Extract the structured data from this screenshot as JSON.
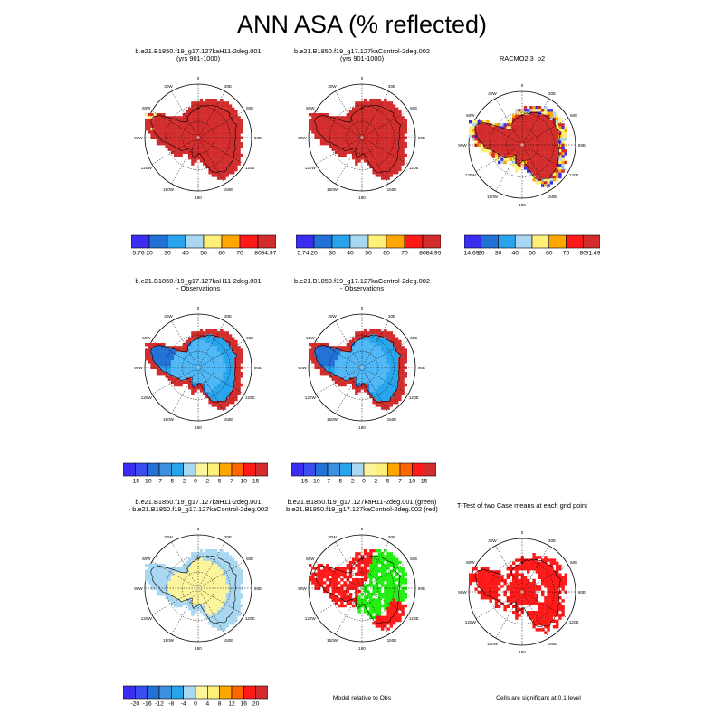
{
  "title": "ANN ASA (% reflected)",
  "colors": {
    "dark_red": "#d22c2c",
    "red": "#ff1a1a",
    "orange": "#ffa600",
    "yellow": "#fff07a",
    "pale_yellow": "#fdf59c",
    "light_blue": "#a9d6f0",
    "sky_blue": "#4fb7f5",
    "mid_blue": "#27a4ec",
    "blue": "#2171d6",
    "violet": "#3b2ef0",
    "green": "#22ee11",
    "coast": "#000000"
  },
  "icons": {
    "south_pole_marker": "cross-marker"
  },
  "panels": [
    {
      "id": "p1",
      "title": [
        "b.e21.B1850.f19_g17.127kaH11-2deg.001",
        "(yrs 901-1000)"
      ],
      "shelf": "dark_red",
      "interior": "dark_red",
      "margin": "dark_red",
      "peninsula": "edge_yellow"
    },
    {
      "id": "p2",
      "title": [
        "b.e21.B1850.f19_g17.127kaControl-2deg.002",
        "(yrs 901-1000)"
      ],
      "shelf": "dark_red",
      "interior": "dark_red",
      "margin": "dark_red",
      "peninsula": "dark_red"
    },
    {
      "id": "p3",
      "title": [
        "RACMO2.3_p2"
      ],
      "shelf": "dark_red",
      "interior": "dark_red",
      "margin": "ringed",
      "peninsula": "mixed"
    },
    {
      "id": "p4",
      "title": [
        "b.e21.B1850.f19_g17.127kaH11-2deg.001",
        "- Observations"
      ],
      "shelf": "dark_red",
      "interior": "sky_blue",
      "margin": "mid_blue",
      "peninsula": "blue"
    },
    {
      "id": "p5",
      "title": [
        "b.e21.B1850.f19_g17.127kaControl-2deg.002",
        "- Observations"
      ],
      "shelf": "dark_red",
      "interior": "sky_blue",
      "margin": "mid_blue",
      "peninsula": "blue"
    },
    {
      "id": "p7",
      "title": [
        "b.e21.B1850.f19_g17.127kaH11-2deg.001",
        "- b.e21.B1850.f19_g17.127kaControl-2deg.002"
      ],
      "shelf": "light_blue",
      "interior": "pale_yellow",
      "margin": "light_blue",
      "peninsula": "light_blue"
    },
    {
      "id": "p8",
      "title": [
        "b.e21.B1850.f19_g17.127kaH11-2deg.001 (green)",
        "b.e21.B1850.f19_g17.127kaControl-2deg.002 (red)"
      ],
      "shelf": "red_green",
      "interior": "green_red",
      "margin": "red_green",
      "peninsula": "red"
    },
    {
      "id": "p9",
      "title": [
        "T-Test of two Case means at each grid point"
      ],
      "shelf": "red_holes",
      "interior": "red_holes",
      "margin": "red_holes",
      "peninsula": "red"
    }
  ],
  "map_labels": {
    "0": "0",
    "30E": "30E",
    "60E": "60E",
    "90E": "90E",
    "120E": "120E",
    "150E": "150E",
    "180": "180",
    "150W": "150W",
    "120W": "120W",
    "90W": "90W",
    "60W": "60W",
    "30W": "30W"
  },
  "colorbars": [
    {
      "id": "cb1",
      "labels": [
        "5.76",
        "20",
        "30",
        "40",
        "50",
        "60",
        "70",
        "80",
        "84.97"
      ],
      "swatches": [
        "violet",
        "blue",
        "mid_blue",
        "light_blue",
        "yellow",
        "orange",
        "red",
        "dark_red"
      ]
    },
    {
      "id": "cb2",
      "labels": [
        "5.74",
        "20",
        "30",
        "40",
        "50",
        "60",
        "70",
        "80",
        "84.95"
      ],
      "swatches": [
        "violet",
        "blue",
        "mid_blue",
        "light_blue",
        "yellow",
        "orange",
        "red",
        "dark_red"
      ]
    },
    {
      "id": "cb3",
      "labels": [
        "14.69",
        "20",
        "30",
        "40",
        "50",
        "60",
        "70",
        "80",
        "91.49"
      ],
      "swatches": [
        "violet",
        "blue",
        "mid_blue",
        "light_blue",
        "yellow",
        "orange",
        "red",
        "dark_red"
      ]
    },
    {
      "id": "cb4",
      "labels": [
        "-15",
        "-10",
        "-7",
        "-5",
        "-2",
        "0",
        "2",
        "5",
        "7",
        "10",
        "15"
      ],
      "swatches": [
        "violet",
        "#3a4ef0",
        "blue",
        "#3d8fe0",
        "mid_blue",
        "light_blue",
        "pale_yellow",
        "yellow",
        "orange",
        "#ff6600",
        "red",
        "dark_red"
      ]
    },
    {
      "id": "cb5",
      "labels": [
        "-15",
        "-10",
        "-7",
        "-5",
        "-2",
        "0",
        "2",
        "5",
        "7",
        "10",
        "15"
      ],
      "swatches": [
        "violet",
        "#3a4ef0",
        "blue",
        "#3d8fe0",
        "mid_blue",
        "light_blue",
        "pale_yellow",
        "yellow",
        "orange",
        "#ff6600",
        "red",
        "dark_red"
      ]
    },
    {
      "id": "cb7",
      "labels": [
        "-20",
        "-16",
        "-12",
        "-8",
        "-4",
        "0",
        "4",
        "8",
        "12",
        "16",
        "20"
      ],
      "swatches": [
        "violet",
        "#3a4ef0",
        "blue",
        "#3d8fe0",
        "mid_blue",
        "light_blue",
        "pale_yellow",
        "yellow",
        "orange",
        "#ff6600",
        "red",
        "dark_red"
      ]
    }
  ],
  "notes": {
    "model_relative": "Model relative to Obs",
    "significance": "Cells are significant at 0.1 level"
  }
}
